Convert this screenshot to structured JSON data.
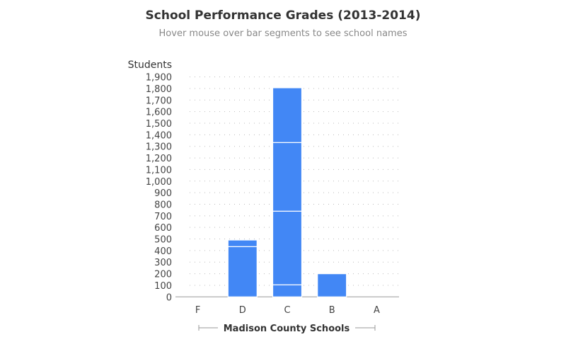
{
  "chart_data": {
    "type": "bar",
    "stacked": true,
    "title": "School Performance Grades (2013-2014)",
    "subtitle": "Hover mouse over bar segments to see school names",
    "xlabel": "Madison County Schools",
    "ylabel": "Students",
    "ylim": [
      0,
      1900
    ],
    "ytick_step": 100,
    "grid": true,
    "bar_color": "#4287f5",
    "categories": [
      "F",
      "D",
      "C",
      "B",
      "A"
    ],
    "stacks": [
      [],
      [
        434,
        57
      ],
      [
        104,
        636,
        593,
        473
      ],
      [
        200
      ],
      []
    ]
  }
}
